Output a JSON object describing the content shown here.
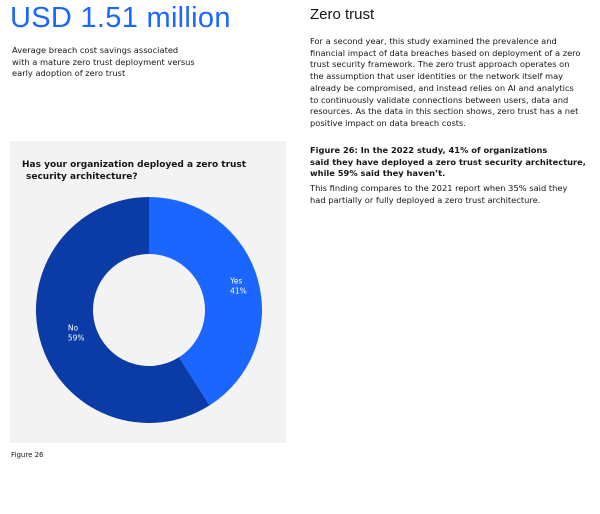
{
  "headline": "USD 1.51 million",
  "subheadline": [
    "Average breach cost savings associated",
    "with a mature zero trust deployment versus",
    "early adoption of zero trust"
  ],
  "figure_label": "Figure 26",
  "section": {
    "title": "Zero trust",
    "body": [
      "For a second year, this study examined the prevalence and",
      "financial impact of data breaches based on deployment of a zero",
      "trust security framework. The zero trust approach operates on",
      "the assumption that user identities or the network itself may",
      "already be compromised, and instead relies on AI and analytics",
      "to continuously validate connections between users, data and",
      "resources. As the data in this section shows, zero trust has a net",
      "positive impact on data breach costs."
    ],
    "figure_caption": [
      "Figure 26: In the 2022 study, 41% of organizations",
      "said they have deployed a zero trust security architecture,",
      "while 59% said they haven’t."
    ],
    "finding": [
      "This finding compares to the 2021 report when 35% said they",
      "had partially or fully deployed a zero trust architecture."
    ]
  },
  "chart_data": {
    "type": "pie",
    "donut": true,
    "title": [
      "Has your organization deployed a zero trust",
      "security architecture?"
    ],
    "categories": [
      "Yes",
      "No"
    ],
    "values": [
      41,
      59
    ],
    "value_labels": [
      "41%",
      "59%"
    ],
    "colors": [
      "#1b66fe",
      "#0a3ba6"
    ]
  }
}
